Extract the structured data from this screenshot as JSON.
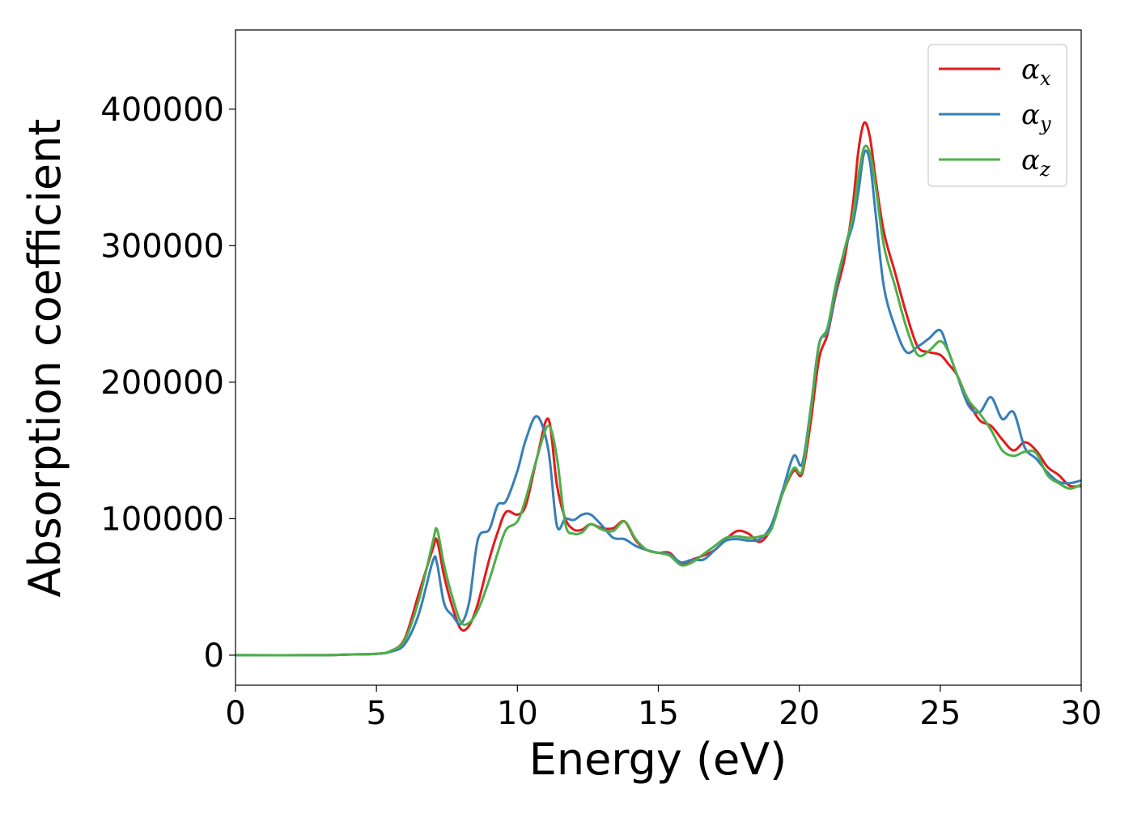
{
  "chart_data": {
    "type": "line",
    "title": "",
    "xlabel": "Energy (eV)",
    "ylabel": "Absorption coefficient",
    "xlim": [
      0,
      30
    ],
    "ylim": [
      -22000,
      458000
    ],
    "xticks": [
      0,
      5,
      10,
      15,
      20,
      25,
      30
    ],
    "xtick_labels": [
      "0",
      "5",
      "10",
      "15",
      "20",
      "25",
      "30"
    ],
    "yticks": [
      0,
      100000,
      200000,
      300000,
      400000
    ],
    "ytick_labels": [
      "0",
      "100000",
      "200000",
      "300000",
      "400000"
    ],
    "grid": false,
    "legend_position": "top-right",
    "x": [
      0,
      3,
      4,
      5,
      5.5,
      6,
      6.5,
      7,
      7.15,
      7.4,
      7.7,
      8,
      8.3,
      8.6,
      9,
      9.3,
      9.6,
      10,
      10.3,
      10.7,
      11.1,
      11.4,
      11.7,
      12,
      12.3,
      12.6,
      13,
      13.4,
      13.8,
      14.2,
      14.6,
      15,
      15.4,
      15.8,
      16.2,
      16.6,
      17,
      17.4,
      17.8,
      18.2,
      18.6,
      19,
      19.4,
      19.8,
      20.1,
      20.4,
      20.7,
      21,
      21.3,
      21.6,
      21.9,
      22.1,
      22.3,
      22.5,
      22.7,
      23,
      23.4,
      23.8,
      24.2,
      24.6,
      25,
      25.3,
      25.6,
      26,
      26.4,
      26.8,
      27.2,
      27.6,
      28,
      28.4,
      28.8,
      29.2,
      29.6,
      30
    ],
    "series": [
      {
        "name": "x",
        "color": "#e41a1c",
        "values": [
          0,
          0,
          500,
          1000,
          3000,
          12000,
          45000,
          78000,
          84000,
          58000,
          35000,
          19000,
          22000,
          38000,
          70000,
          90000,
          105000,
          103000,
          110000,
          145000,
          173000,
          125000,
          100000,
          92000,
          92000,
          96000,
          93000,
          93000,
          98000,
          84000,
          77000,
          75000,
          75000,
          67000,
          70000,
          73000,
          77000,
          85000,
          91000,
          89000,
          83000,
          93000,
          118000,
          135000,
          133000,
          170000,
          217000,
          235000,
          265000,
          290000,
          330000,
          370000,
          390000,
          380000,
          350000,
          310000,
          280000,
          250000,
          226000,
          222000,
          220000,
          213000,
          205000,
          186000,
          172000,
          168000,
          158000,
          150000,
          156000,
          150000,
          138000,
          132000,
          124000,
          124000
        ]
      },
      {
        "name": "y",
        "color": "#377eb8",
        "values": [
          0,
          0,
          500,
          1000,
          2500,
          8000,
          30000,
          69000,
          67000,
          38000,
          29000,
          23000,
          40000,
          85000,
          92000,
          110000,
          113000,
          135000,
          158000,
          175000,
          150000,
          95000,
          100000,
          99000,
          103000,
          103000,
          95000,
          86000,
          85000,
          80000,
          77000,
          75000,
          74000,
          68000,
          70000,
          70000,
          77000,
          84000,
          85000,
          84000,
          85000,
          95000,
          120000,
          146000,
          140000,
          180000,
          228000,
          237000,
          268000,
          296000,
          316000,
          340000,
          368000,
          362000,
          325000,
          270000,
          240000,
          222000,
          226000,
          232000,
          238000,
          222000,
          205000,
          183000,
          178000,
          189000,
          173000,
          178000,
          152000,
          144000,
          134000,
          127000,
          126000,
          128000
        ]
      },
      {
        "name": "z",
        "color": "#4daf4a",
        "values": [
          0,
          0,
          500,
          1000,
          3000,
          11000,
          40000,
          83000,
          92000,
          66000,
          42000,
          24000,
          24000,
          33000,
          55000,
          75000,
          92000,
          98000,
          115000,
          145000,
          168000,
          145000,
          96000,
          89000,
          90000,
          96000,
          92000,
          91000,
          98000,
          85000,
          77000,
          75000,
          73000,
          66000,
          68000,
          74000,
          80000,
          86000,
          87000,
          86000,
          87000,
          92000,
          118000,
          137000,
          135000,
          178000,
          227000,
          240000,
          272000,
          297000,
          322000,
          352000,
          372000,
          368000,
          345000,
          300000,
          270000,
          240000,
          220000,
          223000,
          230000,
          222000,
          205000,
          187000,
          177000,
          165000,
          150000,
          146000,
          149000,
          148000,
          132000,
          126000,
          122000,
          125000
        ]
      }
    ],
    "legend": [
      {
        "symbol": "α",
        "subscript": "x",
        "color": "#e41a1c"
      },
      {
        "symbol": "α",
        "subscript": "y",
        "color": "#377eb8"
      },
      {
        "symbol": "α",
        "subscript": "z",
        "color": "#4daf4a"
      }
    ]
  }
}
